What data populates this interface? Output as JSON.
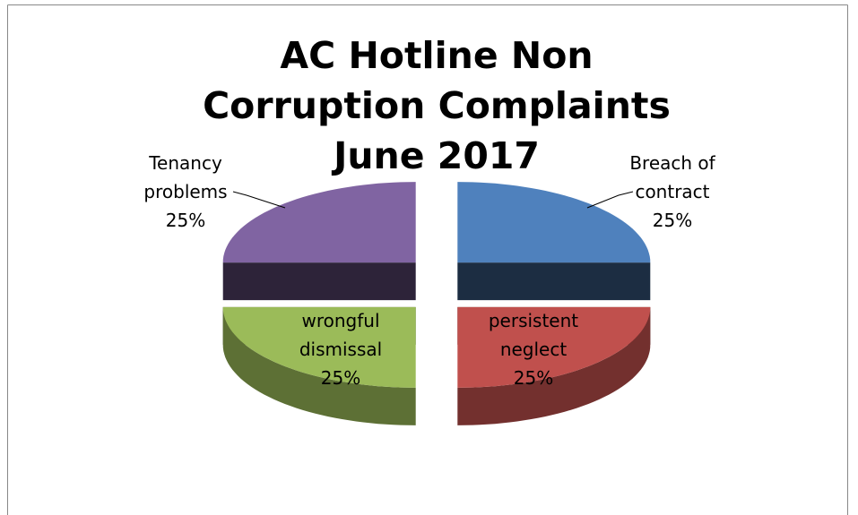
{
  "chart_data": {
    "type": "pie",
    "title": "AC Hotline Non Corruption Complaints June 2017",
    "categories": [
      "Breach of contract",
      "persistent neglect",
      "wrongful dismissal",
      "Tenancy problems"
    ],
    "values": [
      25,
      25,
      25,
      25
    ],
    "value_labels": [
      "25%",
      "25%",
      "25%",
      "25%"
    ],
    "colors": [
      "#4f81bd",
      "#c0504d",
      "#9bbb59",
      "#8064a2"
    ]
  }
}
